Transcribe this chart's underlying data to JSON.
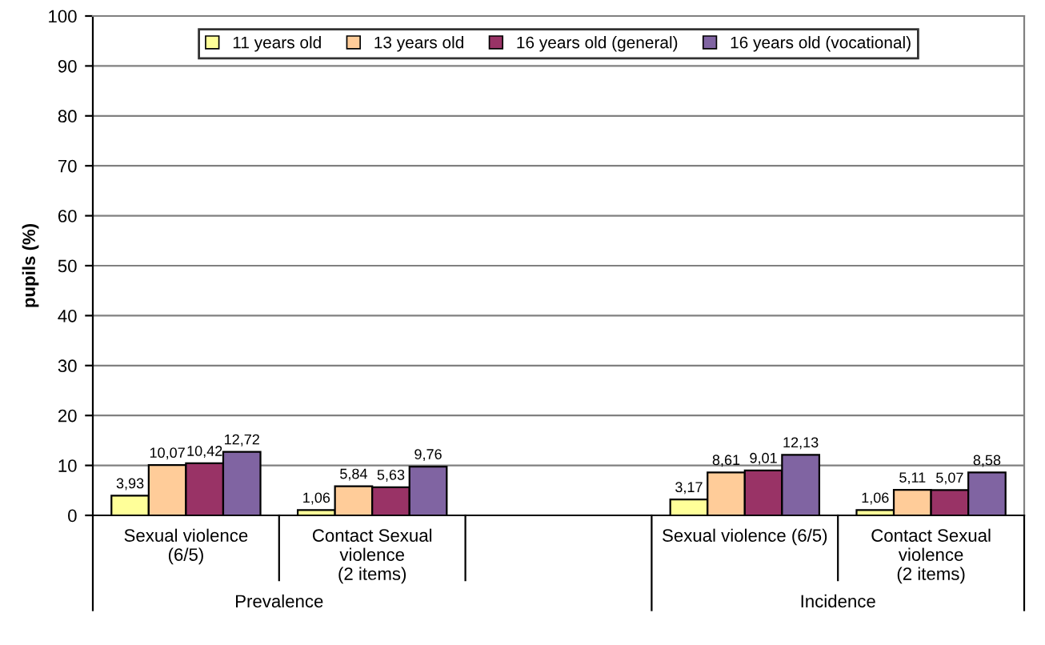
{
  "chart_data": {
    "type": "bar",
    "ylabel": "pupils (%)",
    "categories": [
      "Sexual violence\n(6/5)",
      "Contact Sexual\nviolence\n(2 items)",
      null,
      "Sexual violence (6/5)",
      "Contact Sexual\nviolence\n(2 items)"
    ],
    "series": [
      {
        "name": "11 years old",
        "color": "#ffff99",
        "values": [
          3.93,
          1.06,
          null,
          3.17,
          1.06
        ],
        "value_labels": [
          "3,93",
          "1,06",
          null,
          "3,17",
          "1,06"
        ]
      },
      {
        "name": "13 years old",
        "color": "#ffcc99",
        "values": [
          10.07,
          5.84,
          null,
          8.61,
          5.11
        ],
        "value_labels": [
          "10,07",
          "5,84",
          null,
          "8,61",
          "5,11"
        ]
      },
      {
        "name": "16 years old (general)",
        "color": "#993366",
        "values": [
          10.42,
          5.63,
          null,
          9.01,
          5.07
        ],
        "value_labels": [
          "10,42",
          "5,63",
          null,
          "9,01",
          "5,07"
        ]
      },
      {
        "name": "16 years old (vocational)",
        "color": "#8064a2",
        "values": [
          12.72,
          9.76,
          null,
          12.13,
          8.58
        ],
        "value_labels": [
          "12,72",
          "9,76",
          null,
          "12,13",
          "8,58"
        ]
      }
    ],
    "annotations": [
      "Prevalence",
      "Incidence"
    ],
    "ylim": [
      0,
      100
    ],
    "yticks": [
      0,
      10,
      20,
      30,
      40,
      50,
      60,
      70,
      80,
      90,
      100
    ],
    "grid": "y",
    "legend": "top"
  }
}
